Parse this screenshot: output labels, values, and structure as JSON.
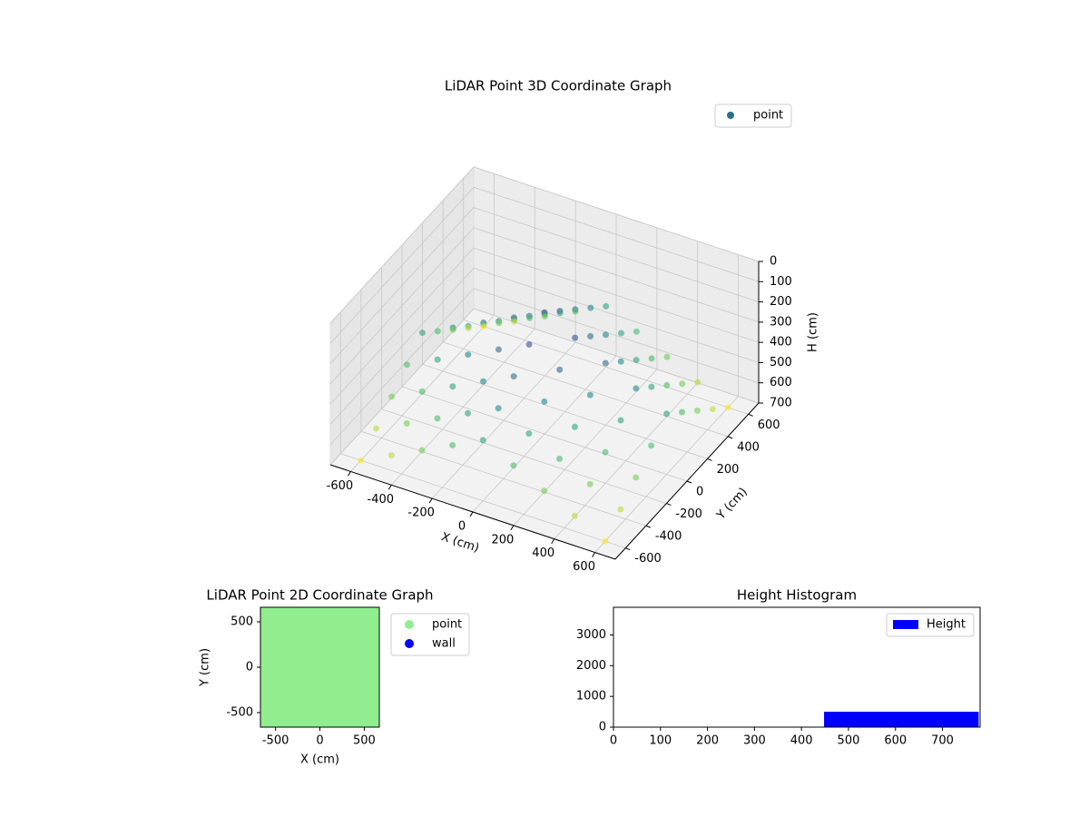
{
  "chart_data": [
    {
      "type": "scatter3d",
      "title": "LiDAR Point 3D Coordinate Graph",
      "xlabel": "X (cm)",
      "ylabel": "Y (cm)",
      "zlabel": "H (cm)",
      "xlim": [
        -700,
        700
      ],
      "ylim": [
        -700,
        700
      ],
      "zlim": [
        700,
        0
      ],
      "xticks": [
        -600,
        -400,
        -200,
        0,
        200,
        400,
        600
      ],
      "yticks": [
        -600,
        -400,
        -200,
        0,
        200,
        400,
        600
      ],
      "zticks": [
        0,
        100,
        200,
        300,
        400,
        500,
        600,
        700
      ],
      "colormap": "viridis",
      "legend": "upper right",
      "series": [
        {
          "name": "point",
          "color": "#2a6f8e",
          "x": [
            -600,
            -450,
            -300,
            -150,
            0,
            150,
            300,
            450,
            600,
            -600,
            -450,
            -300,
            -150,
            0,
            150,
            300,
            450,
            600,
            -600,
            -450,
            -300,
            -150,
            0,
            150,
            300,
            450,
            600,
            -600,
            -450,
            -300,
            -150,
            0,
            150,
            300,
            450,
            600,
            -600,
            -450,
            -300,
            -150,
            0,
            150,
            300,
            450,
            600,
            -600,
            -450,
            -300,
            -150,
            0,
            150,
            300,
            450,
            600,
            -600,
            -450,
            -300,
            -150,
            0,
            150,
            300,
            450,
            600,
            -600,
            -450,
            -300,
            -150,
            0,
            150,
            300,
            450,
            600,
            -600,
            -450,
            -300,
            -150,
            0,
            150,
            300,
            450,
            600
          ],
          "y": [
            -600,
            -600,
            -600,
            -600,
            -600,
            -600,
            -600,
            -600,
            -600,
            -450,
            -450,
            -450,
            -450,
            -450,
            -450,
            -450,
            -450,
            -450,
            -300,
            -300,
            -300,
            -300,
            -300,
            -300,
            -300,
            -300,
            -300,
            -150,
            -150,
            -150,
            -150,
            -150,
            -150,
            -150,
            -150,
            -150,
            0,
            0,
            0,
            0,
            0,
            0,
            0,
            0,
            0,
            150,
            150,
            150,
            150,
            150,
            150,
            150,
            150,
            150,
            300,
            300,
            300,
            300,
            300,
            300,
            300,
            300,
            300,
            450,
            450,
            450,
            450,
            450,
            450,
            450,
            450,
            450,
            600,
            600,
            600,
            600,
            600,
            600,
            600,
            600,
            600
          ],
          "z": [
            700,
            625,
            550,
            475,
            400,
            475,
            550,
            625,
            700,
            625,
            550,
            475,
            400,
            325,
            400,
            475,
            550,
            625,
            550,
            475,
            400,
            325,
            250,
            325,
            400,
            475,
            550,
            475,
            400,
            325,
            250,
            175,
            250,
            325,
            400,
            475,
            400,
            325,
            250,
            175,
            100,
            175,
            250,
            325,
            400,
            475,
            400,
            325,
            250,
            175,
            250,
            325,
            400,
            475,
            550,
            475,
            400,
            325,
            250,
            325,
            400,
            475,
            550,
            625,
            550,
            475,
            400,
            325,
            400,
            475,
            550,
            625,
            700,
            625,
            550,
            475,
            400,
            475,
            550,
            625,
            700
          ]
        }
      ]
    },
    {
      "type": "scatter",
      "title": "LiDAR Point 2D Coordinate Graph",
      "xlabel": "X (cm)",
      "ylabel": "Y (cm)",
      "xlim": [
        -670,
        670
      ],
      "ylim": [
        -660,
        660
      ],
      "xticks": [
        -500,
        0,
        500
      ],
      "yticks": [
        -500,
        0,
        500
      ],
      "legend": "outside right",
      "series": [
        {
          "name": "point",
          "color": "#90ee90",
          "x": [
            -600,
            -450,
            -300,
            -150,
            0,
            150,
            300,
            450,
            600,
            -600,
            -450,
            -300,
            -150,
            0,
            150,
            300,
            450,
            600,
            -600,
            -450,
            -300,
            -150,
            0,
            150,
            300,
            450,
            600,
            -600,
            -450,
            -300,
            -150,
            0,
            150,
            300,
            450,
            600,
            -600,
            -450,
            -300,
            -150,
            0,
            150,
            300,
            450,
            600,
            -600,
            -450,
            -300,
            -150,
            0,
            150,
            300,
            450,
            600,
            -600,
            -450,
            -300,
            -150,
            0,
            150,
            300,
            450,
            600,
            -600,
            -450,
            -300,
            -150,
            0,
            150,
            300,
            450,
            600,
            -600,
            -450,
            -300,
            -150,
            0,
            150,
            300,
            450,
            600
          ],
          "y": [
            -600,
            -600,
            -600,
            -600,
            -600,
            -600,
            -600,
            -600,
            -600,
            -450,
            -450,
            -450,
            -450,
            -450,
            -450,
            -450,
            -450,
            -450,
            -300,
            -300,
            -300,
            -300,
            -300,
            -300,
            -300,
            -300,
            -300,
            -150,
            -150,
            -150,
            -150,
            -150,
            -150,
            -150,
            -150,
            -150,
            0,
            0,
            0,
            0,
            0,
            0,
            0,
            0,
            0,
            150,
            150,
            150,
            150,
            150,
            150,
            150,
            150,
            150,
            300,
            300,
            300,
            300,
            300,
            300,
            300,
            300,
            300,
            450,
            450,
            450,
            450,
            450,
            450,
            450,
            450,
            450,
            600,
            600,
            600,
            600,
            600,
            600,
            600,
            600,
            600
          ]
        },
        {
          "name": "wall",
          "color": "#0000ff",
          "x": [],
          "y": []
        }
      ]
    },
    {
      "type": "histogram",
      "title": "Height Histogram",
      "xlim": [
        0,
        780
      ],
      "ylim": [
        0,
        3900
      ],
      "xticks": [
        0,
        100,
        200,
        300,
        400,
        500,
        600,
        700
      ],
      "yticks": [
        0,
        1000,
        2000,
        3000
      ],
      "legend": "upper right",
      "series": [
        {
          "name": "Height",
          "color": "#0000ff",
          "bins": [
            448,
            777
          ],
          "counts": [
            500
          ]
        }
      ]
    }
  ]
}
